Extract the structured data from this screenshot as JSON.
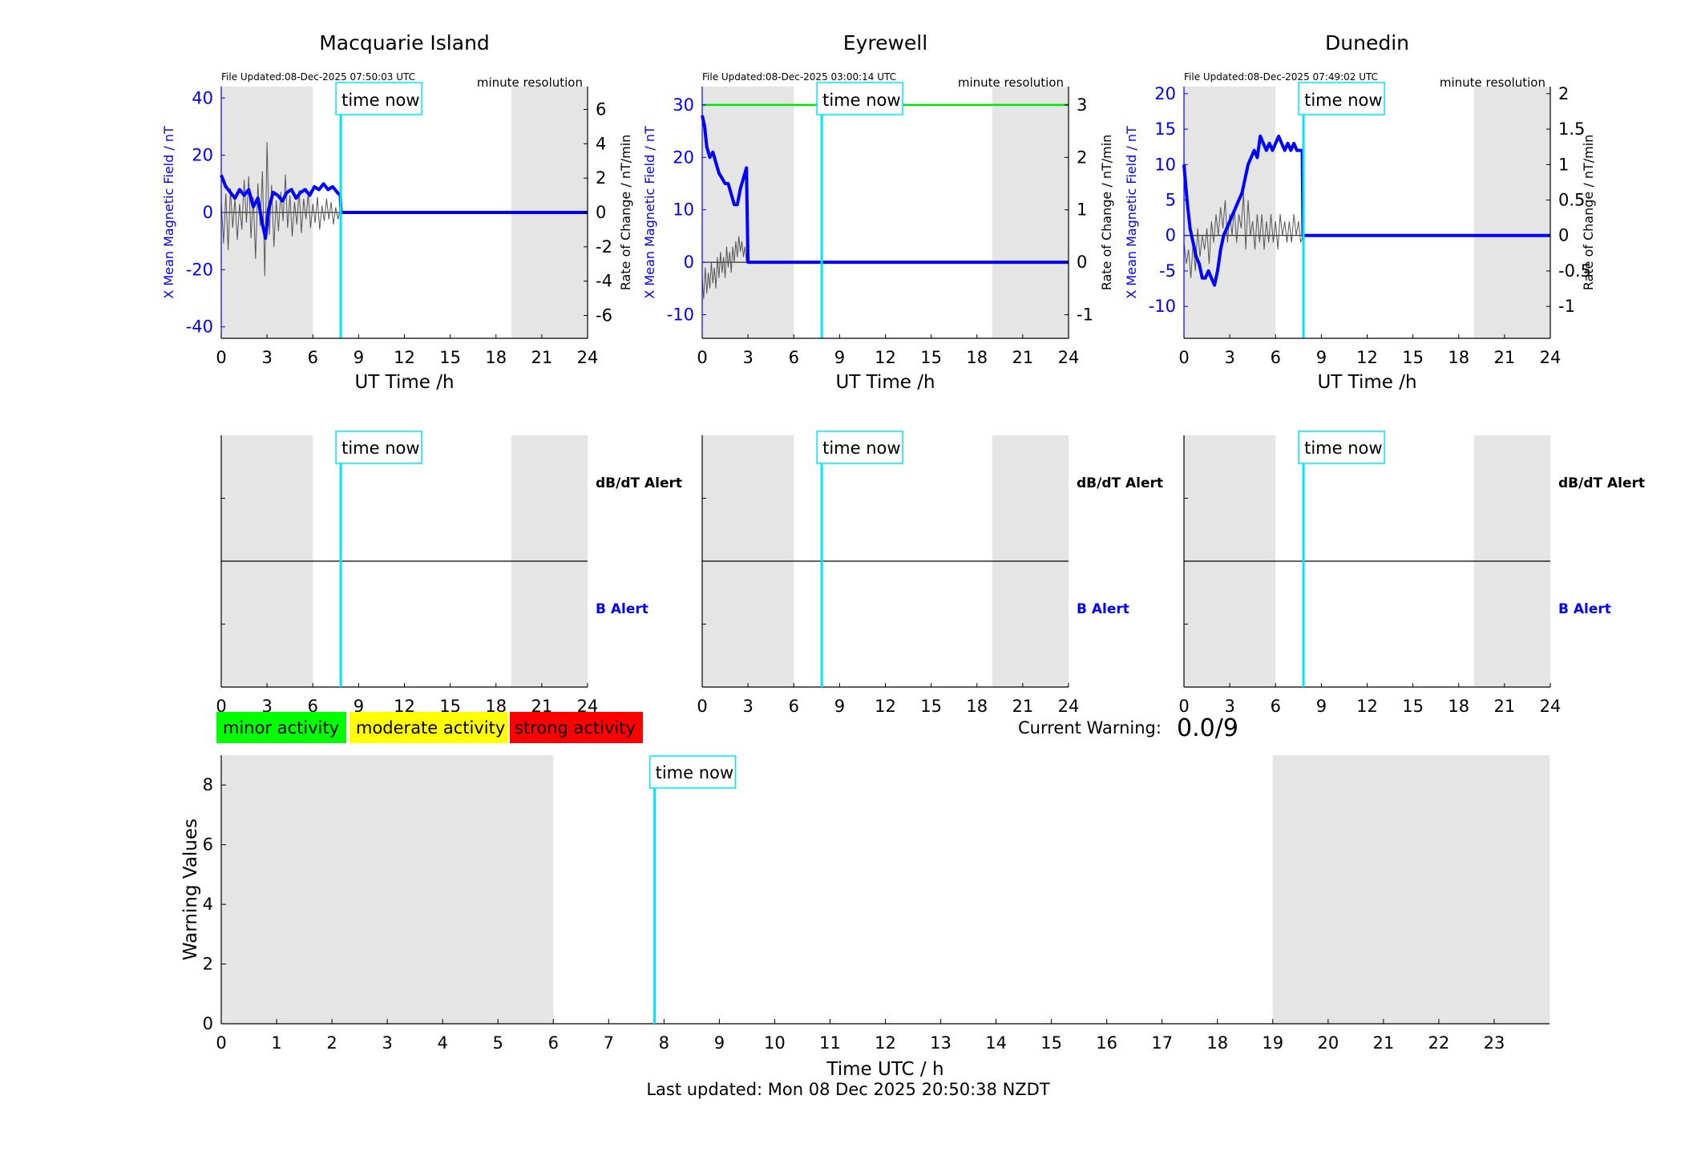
{
  "stations": [
    {
      "title": "Macquarie Island",
      "file_updated": "File Updated:08-Dec-2025 07:50:03 UTC",
      "resolution": "minute resolution",
      "left_ylabel": "X Mean Magnetic Field / nT",
      "right_ylabel": "Rate of Change / nT/min",
      "left_ylim": [
        -44,
        44
      ],
      "left_ticks": [
        -40,
        -20,
        0,
        20,
        40
      ],
      "right_ylim": [
        -7.33,
        7.33
      ],
      "right_ticks": [
        -6,
        -4,
        -2,
        0,
        2,
        4,
        6
      ],
      "right_tick_labels": [
        "-6",
        "-4",
        "-2",
        "0",
        "2",
        "4",
        "6"
      ],
      "alert_dbdt": "dB/dT Alert",
      "alert_b": "B Alert",
      "threshold_line": null,
      "x_field": [
        [
          0,
          13
        ],
        [
          0.3,
          9
        ],
        [
          0.6,
          7
        ],
        [
          0.9,
          5
        ],
        [
          1.2,
          8
        ],
        [
          1.5,
          6
        ],
        [
          1.8,
          8
        ],
        [
          2.1,
          2
        ],
        [
          2.4,
          5
        ],
        [
          2.7,
          -4
        ],
        [
          2.9,
          -9
        ],
        [
          3.1,
          1
        ],
        [
          3.4,
          7
        ],
        [
          3.7,
          6
        ],
        [
          4.0,
          4
        ],
        [
          4.3,
          7
        ],
        [
          4.6,
          8
        ],
        [
          4.9,
          5
        ],
        [
          5.2,
          7
        ],
        [
          5.5,
          8
        ],
        [
          5.8,
          6
        ],
        [
          6.1,
          9
        ],
        [
          6.4,
          8
        ],
        [
          6.7,
          10
        ],
        [
          7.0,
          8
        ],
        [
          7.3,
          9
        ],
        [
          7.6,
          7
        ],
        [
          7.8,
          6
        ],
        [
          7.85,
          0
        ],
        [
          24,
          0
        ]
      ],
      "rate_of_change": [
        [
          0,
          0.6
        ],
        [
          0.15,
          -1.8
        ],
        [
          0.3,
          1.1
        ],
        [
          0.45,
          -2.2
        ],
        [
          0.6,
          1.4
        ],
        [
          0.75,
          -0.9
        ],
        [
          0.9,
          0.8
        ],
        [
          1.05,
          -1.6
        ],
        [
          1.2,
          0.5
        ],
        [
          1.35,
          -1.0
        ],
        [
          1.5,
          1.9
        ],
        [
          1.65,
          -0.6
        ],
        [
          1.8,
          2.1
        ],
        [
          1.95,
          -1.5
        ],
        [
          2.1,
          0.9
        ],
        [
          2.25,
          -2.7
        ],
        [
          2.4,
          1.7
        ],
        [
          2.55,
          -0.8
        ],
        [
          2.7,
          2.4
        ],
        [
          2.85,
          -3.7
        ],
        [
          3.0,
          4.1
        ],
        [
          3.15,
          -1.3
        ],
        [
          3.3,
          1.6
        ],
        [
          3.45,
          -2.0
        ],
        [
          3.6,
          0.7
        ],
        [
          3.75,
          -1.1
        ],
        [
          3.9,
          1.2
        ],
        [
          4.05,
          -0.5
        ],
        [
          4.2,
          2.2
        ],
        [
          4.35,
          -0.9
        ],
        [
          4.5,
          1.0
        ],
        [
          4.65,
          -1.4
        ],
        [
          4.8,
          0.6
        ],
        [
          4.95,
          -0.7
        ],
        [
          5.1,
          1.3
        ],
        [
          5.25,
          -1.2
        ],
        [
          5.4,
          0.8
        ],
        [
          5.55,
          -0.4
        ],
        [
          5.7,
          1.1
        ],
        [
          5.85,
          -0.9
        ],
        [
          6.0,
          0.5
        ],
        [
          6.15,
          -0.6
        ],
        [
          6.3,
          0.9
        ],
        [
          6.45,
          -1.0
        ],
        [
          6.6,
          0.4
        ],
        [
          6.75,
          -0.5
        ],
        [
          6.9,
          0.8
        ],
        [
          7.05,
          -0.4
        ],
        [
          7.2,
          0.6
        ],
        [
          7.35,
          -0.7
        ],
        [
          7.5,
          0.3
        ],
        [
          7.65,
          -0.4
        ],
        [
          7.8,
          0.2
        ]
      ]
    },
    {
      "title": "Eyrewell",
      "file_updated": "File Updated:08-Dec-2025 03:00:14 UTC",
      "resolution": "minute resolution",
      "left_ylabel": "X Mean Magnetic Field / nT",
      "right_ylabel": "Rate of Change / nT/min",
      "left_ylim": [
        -14.5,
        33.5
      ],
      "left_ticks": [
        -10,
        0,
        10,
        20,
        30
      ],
      "right_ylim": [
        -1.45,
        3.35
      ],
      "right_ticks": [
        -1,
        0,
        1,
        2,
        3
      ],
      "right_tick_labels": [
        "-1",
        "0",
        "1",
        "2",
        "3"
      ],
      "alert_dbdt": "dB/dT Alert",
      "alert_b": "B Alert",
      "threshold_line": {
        "value": 3,
        "color": "#00e600"
      },
      "x_field": [
        [
          0,
          28
        ],
        [
          0.15,
          26
        ],
        [
          0.3,
          22
        ],
        [
          0.5,
          20
        ],
        [
          0.7,
          21
        ],
        [
          0.9,
          19
        ],
        [
          1.1,
          17
        ],
        [
          1.3,
          16
        ],
        [
          1.5,
          15
        ],
        [
          1.7,
          15
        ],
        [
          1.9,
          13
        ],
        [
          2.1,
          11
        ],
        [
          2.3,
          11
        ],
        [
          2.5,
          14
        ],
        [
          2.7,
          16
        ],
        [
          2.9,
          18
        ],
        [
          3.0,
          0
        ],
        [
          24,
          0
        ]
      ],
      "rate_of_change": [
        [
          0,
          -0.3
        ],
        [
          0.1,
          -0.7
        ],
        [
          0.2,
          -0.1
        ],
        [
          0.3,
          -0.6
        ],
        [
          0.4,
          -0.2
        ],
        [
          0.5,
          -0.5
        ],
        [
          0.6,
          0.0
        ],
        [
          0.7,
          -0.4
        ],
        [
          0.8,
          -0.1
        ],
        [
          0.9,
          -0.5
        ],
        [
          1.0,
          0.1
        ],
        [
          1.1,
          -0.3
        ],
        [
          1.2,
          0.2
        ],
        [
          1.3,
          -0.2
        ],
        [
          1.4,
          0.1
        ],
        [
          1.5,
          -0.3
        ],
        [
          1.6,
          0.3
        ],
        [
          1.7,
          -0.1
        ],
        [
          1.8,
          0.2
        ],
        [
          1.9,
          -0.2
        ],
        [
          2.0,
          0.3
        ],
        [
          2.1,
          0.0
        ],
        [
          2.2,
          0.4
        ],
        [
          2.3,
          0.1
        ],
        [
          2.4,
          0.5
        ],
        [
          2.5,
          0.2
        ],
        [
          2.6,
          0.4
        ],
        [
          2.7,
          0.1
        ],
        [
          2.8,
          0.3
        ],
        [
          2.9,
          0.0
        ],
        [
          3.0,
          0.0
        ]
      ]
    },
    {
      "title": "Dunedin",
      "file_updated": "File Updated:08-Dec-2025 07:49:02 UTC",
      "resolution": "minute resolution",
      "left_ylabel": "X Mean Magnetic Field / nT",
      "right_ylabel": "Rate of Change / nT/min",
      "left_ylim": [
        -14.5,
        21
      ],
      "left_ticks": [
        -10,
        -5,
        0,
        5,
        10,
        15,
        20
      ],
      "right_ylim": [
        -1.45,
        2.1
      ],
      "right_ticks": [
        -1,
        -0.5,
        0,
        0.5,
        1,
        1.5,
        2
      ],
      "right_tick_labels": [
        "-1",
        "-0.5",
        "0",
        "0.5",
        "1",
        "1.5",
        "2"
      ],
      "alert_dbdt": "dB/dT Alert",
      "alert_b": "B Alert",
      "threshold_line": null,
      "x_field": [
        [
          0,
          10
        ],
        [
          0.2,
          5
        ],
        [
          0.4,
          1
        ],
        [
          0.6,
          -1
        ],
        [
          0.8,
          -3
        ],
        [
          1.0,
          -4
        ],
        [
          1.2,
          -6
        ],
        [
          1.4,
          -6
        ],
        [
          1.6,
          -5
        ],
        [
          1.8,
          -6
        ],
        [
          2.0,
          -7
        ],
        [
          2.2,
          -5
        ],
        [
          2.4,
          -2
        ],
        [
          2.6,
          0
        ],
        [
          2.8,
          1
        ],
        [
          3.0,
          2
        ],
        [
          3.2,
          3
        ],
        [
          3.4,
          4
        ],
        [
          3.6,
          5
        ],
        [
          3.8,
          6
        ],
        [
          4.0,
          8
        ],
        [
          4.2,
          10
        ],
        [
          4.4,
          11
        ],
        [
          4.6,
          12
        ],
        [
          4.8,
          11
        ],
        [
          5.0,
          14
        ],
        [
          5.2,
          13
        ],
        [
          5.4,
          12
        ],
        [
          5.6,
          13
        ],
        [
          5.8,
          12
        ],
        [
          6.0,
          13
        ],
        [
          6.2,
          14
        ],
        [
          6.4,
          13
        ],
        [
          6.6,
          12
        ],
        [
          6.8,
          13
        ],
        [
          7.0,
          12
        ],
        [
          7.2,
          13
        ],
        [
          7.4,
          12
        ],
        [
          7.6,
          12
        ],
        [
          7.75,
          12
        ],
        [
          7.8,
          0
        ],
        [
          24,
          0
        ]
      ],
      "rate_of_change": [
        [
          0,
          -0.1
        ],
        [
          0.15,
          -0.4
        ],
        [
          0.3,
          -0.2
        ],
        [
          0.45,
          -0.6
        ],
        [
          0.6,
          -0.1
        ],
        [
          0.75,
          -0.5
        ],
        [
          0.9,
          0.1
        ],
        [
          1.05,
          -0.3
        ],
        [
          1.2,
          0.0
        ],
        [
          1.35,
          -0.2
        ],
        [
          1.5,
          0.1
        ],
        [
          1.65,
          -0.4
        ],
        [
          1.8,
          0.2
        ],
        [
          1.95,
          -0.1
        ],
        [
          2.1,
          0.3
        ],
        [
          2.25,
          0.0
        ],
        [
          2.4,
          0.4
        ],
        [
          2.55,
          0.1
        ],
        [
          2.7,
          0.5
        ],
        [
          2.85,
          -0.1
        ],
        [
          3.0,
          0.3
        ],
        [
          3.15,
          0.0
        ],
        [
          3.3,
          0.4
        ],
        [
          3.45,
          -0.1
        ],
        [
          3.6,
          0.3
        ],
        [
          3.75,
          0.1
        ],
        [
          3.9,
          0.6
        ],
        [
          4.05,
          -0.2
        ],
        [
          4.2,
          0.5
        ],
        [
          4.35,
          0.0
        ],
        [
          4.5,
          0.2
        ],
        [
          4.65,
          -0.2
        ],
        [
          4.8,
          0.3
        ],
        [
          4.95,
          -0.1
        ],
        [
          5.1,
          0.3
        ],
        [
          5.25,
          -0.2
        ],
        [
          5.4,
          0.2
        ],
        [
          5.55,
          -0.1
        ],
        [
          5.7,
          0.3
        ],
        [
          5.85,
          -0.1
        ],
        [
          6.0,
          0.2
        ],
        [
          6.15,
          -0.2
        ],
        [
          6.3,
          0.3
        ],
        [
          6.45,
          0.0
        ],
        [
          6.6,
          0.2
        ],
        [
          6.75,
          -0.1
        ],
        [
          6.9,
          0.2
        ],
        [
          7.05,
          -0.1
        ],
        [
          7.2,
          0.3
        ],
        [
          7.35,
          0.0
        ],
        [
          7.5,
          0.2
        ],
        [
          7.65,
          -0.1
        ],
        [
          7.8,
          0.0
        ]
      ]
    }
  ],
  "shared": {
    "xlabel": "UT Time /h",
    "x_ticks": [
      0,
      3,
      6,
      9,
      12,
      15,
      18,
      21,
      24
    ],
    "time_now_label": "time now",
    "time_now_hour": 7.83,
    "night_bands": [
      [
        0,
        6
      ],
      [
        19,
        24
      ]
    ]
  },
  "legend": {
    "minor": "minor activity",
    "moderate": "moderate activity",
    "strong": "strong activity",
    "minor_color": "#00ff00",
    "moderate_color": "#ffff00",
    "strong_color": "#ff0000"
  },
  "current_warning": {
    "label": "Current Warning:",
    "value": "0.0/9"
  },
  "chart_data": [
    {
      "type": "line",
      "title": "Macquarie Island",
      "xlabel": "UT Time /h",
      "ylabel": "X Mean Magnetic Field / nT",
      "ylim": [
        -44,
        44
      ],
      "xlim": [
        0,
        24
      ]
    },
    {
      "type": "line",
      "title": "Eyrewell",
      "xlabel": "UT Time /h",
      "ylabel": "X Mean Magnetic Field / nT",
      "ylim": [
        -14.5,
        33.5
      ],
      "xlim": [
        0,
        24
      ]
    },
    {
      "type": "line",
      "title": "Dunedin",
      "xlabel": "UT Time /h",
      "ylabel": "X Mean Magnetic Field / nT",
      "ylim": [
        -14.5,
        21
      ],
      "xlim": [
        0,
        24
      ]
    },
    {
      "type": "line",
      "title": "",
      "xlabel": "Time UTC / h",
      "ylabel": "Warning Values",
      "ylim": [
        0,
        9
      ],
      "xlim": [
        0,
        24
      ],
      "series": []
    }
  ],
  "warning_panel": {
    "ylabel": "Warning Values",
    "xlabel": "Time UTC / h",
    "x_ticks": [
      0,
      1,
      2,
      3,
      4,
      5,
      6,
      7,
      8,
      9,
      10,
      11,
      12,
      13,
      14,
      15,
      16,
      17,
      18,
      19,
      20,
      21,
      22,
      23
    ],
    "y_ticks": [
      0,
      2,
      4,
      6,
      8
    ],
    "ylim": [
      0,
      9
    ],
    "night_bands": [
      [
        0,
        6
      ],
      [
        19,
        24
      ]
    ],
    "time_now_hour": 7.83
  },
  "footer": "Last updated: Mon 08 Dec 2025 20:50:38 NZDT",
  "colors": {
    "field": "#0000ff",
    "rate": "#555555",
    "time_now": "#00e5ff",
    "night": "#e5e5e5",
    "left_axis": "#0000ff"
  }
}
